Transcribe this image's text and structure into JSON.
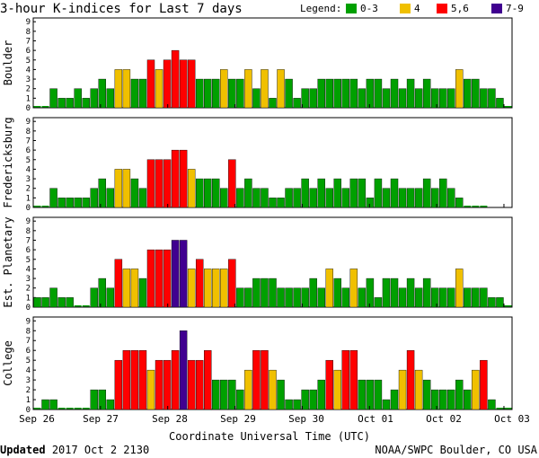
{
  "chart_data": {
    "type": "bar",
    "title": "3-hour K-indices for Last 7 days",
    "legend": {
      "label": "Legend:",
      "entries": [
        {
          "label": "0-3",
          "color": "#00a000"
        },
        {
          "label": "4",
          "color": "#f0c000"
        },
        {
          "label": "5,6",
          "color": "#ff0000"
        },
        {
          "label": "7-9",
          "color": "#400090"
        }
      ]
    },
    "ylim": [
      0,
      9
    ],
    "y_ticks": [
      "0",
      "1",
      "2",
      "3",
      "4",
      "5",
      "6",
      "7",
      "8",
      "9"
    ],
    "x_ticks": [
      "Sep 26",
      "Sep 27",
      "Sep 28",
      "Sep 29",
      "Sep 30",
      "Oct 01",
      "Oct 02",
      "Oct 03"
    ],
    "xlabel": "Coordinate Universal Time (UTC)",
    "panels": [
      {
        "name": "Boulder",
        "values": [
          0,
          0,
          2,
          1,
          1,
          2,
          1,
          2,
          3,
          2,
          4,
          4,
          3,
          3,
          5,
          4,
          5,
          6,
          5,
          5,
          3,
          3,
          3,
          4,
          3,
          3,
          4,
          2,
          4,
          1,
          4,
          3,
          1,
          2,
          2,
          3,
          3,
          3,
          3,
          3,
          2,
          3,
          3,
          2,
          3,
          2,
          3,
          2,
          3,
          2,
          2,
          2,
          4,
          3,
          3,
          2,
          2,
          1,
          0
        ]
      },
      {
        "name": "Fredericksburg",
        "values": [
          0,
          0,
          2,
          1,
          1,
          1,
          1,
          2,
          3,
          2,
          4,
          4,
          3,
          2,
          5,
          5,
          5,
          6,
          6,
          4,
          3,
          3,
          3,
          2,
          5,
          2,
          3,
          2,
          2,
          1,
          1,
          2,
          2,
          3,
          2,
          3,
          2,
          3,
          2,
          3,
          3,
          1,
          3,
          2,
          3,
          2,
          2,
          2,
          3,
          2,
          3,
          2,
          1,
          0,
          0,
          0
        ]
      },
      {
        "name": "Est. Planetary",
        "values": [
          1,
          1,
          2,
          1,
          1,
          0,
          0,
          2,
          3,
          2,
          5,
          4,
          4,
          3,
          6,
          6,
          6,
          7,
          7,
          4,
          5,
          4,
          4,
          4,
          5,
          2,
          2,
          3,
          3,
          3,
          2,
          2,
          2,
          2,
          3,
          2,
          4,
          3,
          2,
          4,
          2,
          3,
          1,
          3,
          3,
          2,
          3,
          2,
          3,
          2,
          2,
          2,
          4,
          2,
          2,
          2,
          1,
          1,
          0
        ]
      },
      {
        "name": "College",
        "values": [
          0,
          1,
          1,
          0,
          0,
          0,
          0,
          2,
          2,
          1,
          5,
          6,
          6,
          6,
          4,
          5,
          5,
          6,
          8,
          5,
          5,
          6,
          3,
          3,
          3,
          2,
          4,
          6,
          6,
          4,
          3,
          1,
          1,
          2,
          2,
          3,
          5,
          4,
          6,
          6,
          3,
          3,
          3,
          1,
          2,
          4,
          6,
          4,
          3,
          2,
          2,
          2,
          3,
          2,
          4,
          5,
          1,
          0,
          0
        ]
      }
    ],
    "y_axis_titles": [
      "Boulder",
      "Fredericksburg",
      "Est. Planetary",
      "College"
    ]
  },
  "footer": {
    "updated_label": "Updated",
    "updated_value": "2017 Oct  2 2130",
    "credit": "NOAA/SWPC Boulder, CO USA"
  }
}
